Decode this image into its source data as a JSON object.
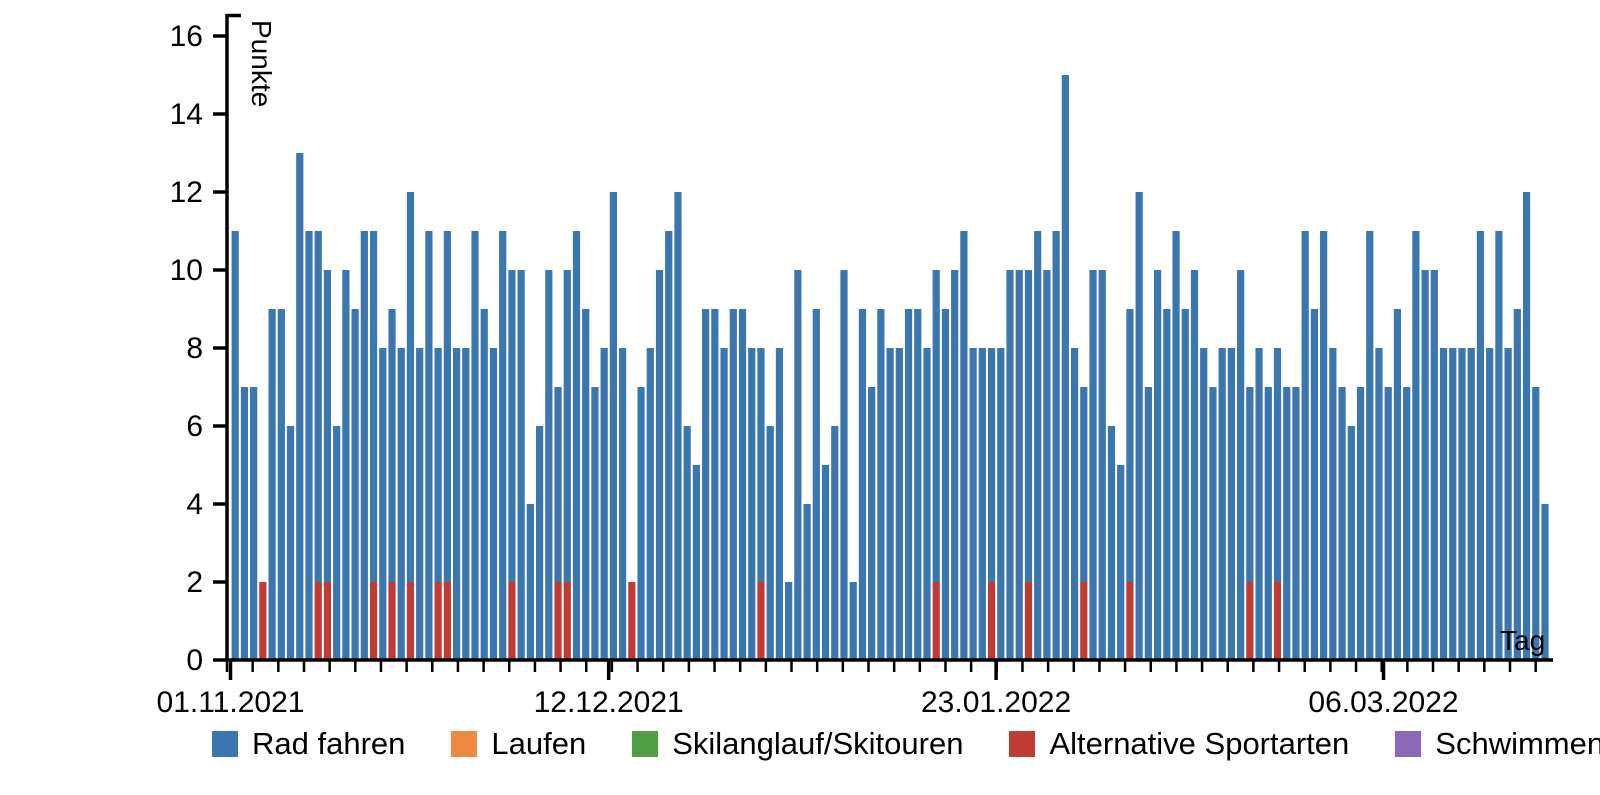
{
  "chart_data": {
    "type": "bar",
    "stacked": true,
    "title": "",
    "xlabel": "Tag",
    "ylabel": "Punkte",
    "ylim": [
      0,
      16
    ],
    "yticks": [
      0,
      2,
      4,
      6,
      8,
      10,
      12,
      14,
      16
    ],
    "grid": false,
    "legend_position": "bottom",
    "x_start_date": "01.11.2021",
    "days_total": 143,
    "x_tick_labels": [
      {
        "label": "01.11.2021",
        "day": 1
      },
      {
        "label": "12.12.2021",
        "day": 42
      },
      {
        "label": "23.01.2022",
        "day": 84
      },
      {
        "label": "06.03.2022",
        "day": 126
      }
    ],
    "totals_per_day": [
      11,
      7,
      7,
      2,
      9,
      9,
      6,
      13,
      11,
      11,
      10,
      6,
      10,
      9,
      11,
      11,
      8,
      9,
      8,
      12,
      8,
      11,
      8,
      11,
      8,
      8,
      11,
      9,
      8,
      11,
      10,
      10,
      4,
      6,
      10,
      7,
      10,
      11,
      9,
      7,
      8,
      12,
      8,
      2,
      7,
      8,
      10,
      11,
      12,
      6,
      5,
      9,
      9,
      8,
      9,
      9,
      8,
      8,
      6,
      8,
      2,
      10,
      4,
      9,
      5,
      6,
      10,
      2,
      9,
      7,
      9,
      8,
      8,
      9,
      9,
      8,
      10,
      9,
      10,
      11,
      8,
      8,
      8,
      8,
      10,
      10,
      10,
      11,
      10,
      11,
      15,
      8,
      7,
      10,
      10,
      6,
      5,
      9,
      12,
      7,
      10,
      9,
      11,
      9,
      10,
      8,
      7,
      8,
      8,
      10,
      7,
      8,
      7,
      8,
      7,
      7,
      11,
      9,
      11,
      8,
      7,
      6,
      7,
      11,
      8,
      7,
      9,
      7,
      11,
      10,
      10,
      8,
      8,
      8,
      8,
      11,
      8,
      11,
      8,
      9,
      12,
      7,
      4
    ],
    "alternative_segment_value": 2,
    "alternative_base_days": [
      10,
      11,
      16,
      18,
      20,
      23,
      24,
      31,
      36,
      37,
      58,
      77,
      83,
      87,
      93,
      98,
      111,
      114
    ],
    "alternative_only_days": [
      4,
      44
    ]
  },
  "axes": {
    "ylabel": "Punkte",
    "xlabel": "Tag",
    "ytick_labels": [
      "0",
      "2",
      "4",
      "6",
      "8",
      "10",
      "12",
      "14",
      "16"
    ]
  },
  "colors": {
    "rad_fahren": "#3C76AE",
    "laufen": "#EF8A3C",
    "ski": "#4F9D44",
    "alternative": "#C03B34",
    "schwimmen": "#8C69B8",
    "axis": "#000000"
  },
  "legend": {
    "items": [
      {
        "label": "Rad fahren",
        "color": "#3C76AE"
      },
      {
        "label": "Laufen",
        "color": "#EF8A3C"
      },
      {
        "label": "Skilanglauf/Skitouren",
        "color": "#4F9D44"
      },
      {
        "label": "Alternative Sportarten",
        "color": "#C03B34"
      },
      {
        "label": "Schwimmen",
        "color": "#8C69B8"
      }
    ]
  }
}
